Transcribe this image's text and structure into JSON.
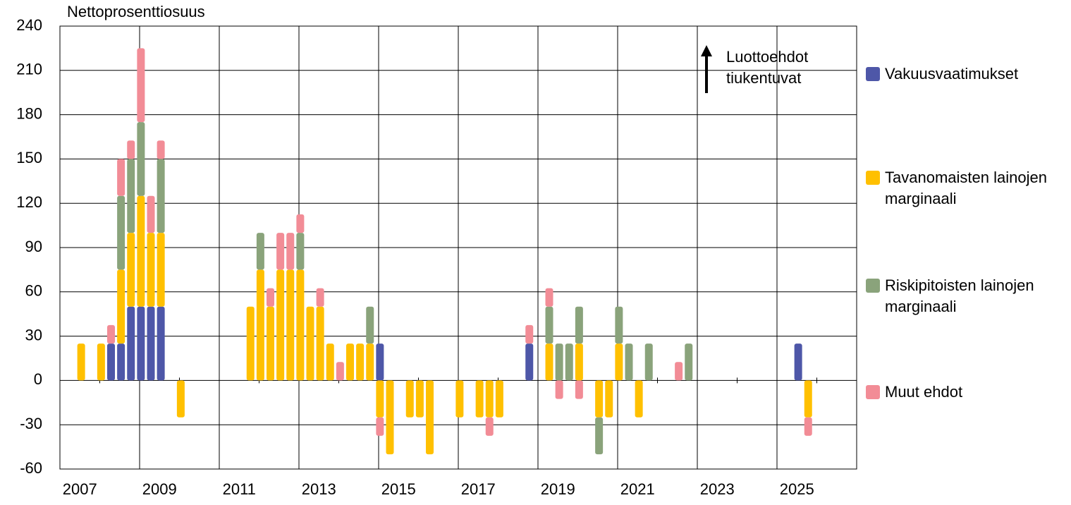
{
  "chart_data": {
    "type": "bar",
    "stacked": true,
    "y_axis_label": "Nettoprosenttiosuus",
    "annotation": "Luottoehdot tiukentuvat",
    "categories": [
      "2007",
      null,
      null,
      null,
      null,
      null,
      null,
      null,
      "2009",
      null,
      null,
      null,
      null,
      null,
      null,
      null,
      "2011",
      null,
      null,
      null,
      null,
      null,
      null,
      null,
      "2013",
      null,
      null,
      null,
      null,
      null,
      null,
      null,
      "2015",
      null,
      null,
      null,
      null,
      null,
      null,
      null,
      "2017",
      null,
      null,
      null,
      null,
      null,
      null,
      null,
      "2019",
      null,
      null,
      null,
      null,
      null,
      null,
      null,
      "2021",
      null,
      null,
      null,
      null,
      null,
      null,
      null,
      "2023",
      null,
      null,
      null,
      null,
      null,
      null,
      null,
      "2025",
      null,
      null,
      null
    ],
    "series": [
      {
        "name": "Vakuusvaatimukset",
        "color": "#4e57a8",
        "values": [
          null,
          null,
          null,
          null,
          25,
          25,
          50,
          50,
          50,
          50,
          null,
          null,
          null,
          null,
          null,
          null,
          null,
          null,
          null,
          null,
          null,
          null,
          null,
          null,
          null,
          null,
          null,
          null,
          null,
          null,
          null,
          25,
          null,
          null,
          null,
          null,
          null,
          null,
          null,
          null,
          null,
          null,
          null,
          null,
          null,
          null,
          25,
          null,
          null,
          null,
          null,
          null,
          null,
          null,
          null,
          null,
          null,
          null,
          null,
          null,
          null,
          null,
          null,
          null,
          null,
          null,
          null,
          null,
          null,
          null,
          null,
          null,
          null,
          25,
          null,
          null
        ]
      },
      {
        "name": "Tavanomaisten lainojen marginaali",
        "color": "#ffc000",
        "values": [
          null,
          25,
          null,
          25,
          null,
          50,
          50,
          75,
          50,
          50,
          null,
          -25,
          null,
          null,
          null,
          null,
          null,
          null,
          50,
          75,
          50,
          75,
          75,
          75,
          50,
          50,
          25,
          null,
          25,
          25,
          25,
          -25,
          -50,
          null,
          -25,
          -25,
          -50,
          null,
          null,
          -25,
          null,
          -25,
          -25,
          -25,
          null,
          null,
          null,
          null,
          25,
          null,
          null,
          25,
          null,
          -25,
          -25,
          25,
          null,
          -25,
          null,
          null,
          null,
          null,
          null,
          null,
          null,
          null,
          null,
          null,
          null,
          null,
          null,
          null,
          null,
          null,
          -25,
          null
        ]
      },
      {
        "name": "Riskipitoisten lainojen marginaali",
        "color": "#8aa37b",
        "values": [
          null,
          null,
          null,
          null,
          null,
          50,
          50,
          50,
          null,
          50,
          null,
          null,
          null,
          null,
          null,
          null,
          null,
          null,
          null,
          25,
          null,
          null,
          null,
          25,
          null,
          null,
          null,
          null,
          null,
          null,
          25,
          null,
          null,
          null,
          null,
          null,
          null,
          null,
          null,
          null,
          null,
          null,
          null,
          null,
          null,
          null,
          null,
          null,
          25,
          25,
          25,
          25,
          null,
          -25,
          null,
          25,
          25,
          null,
          25,
          null,
          null,
          null,
          25,
          null,
          null,
          null,
          null,
          null,
          null,
          null,
          null,
          null,
          null,
          null,
          null,
          null
        ]
      },
      {
        "name": "Muut ehdot",
        "color": "#f28c96",
        "values": [
          null,
          null,
          null,
          null,
          12.5,
          25,
          12.5,
          50,
          25,
          12.5,
          null,
          null,
          null,
          null,
          null,
          null,
          null,
          null,
          null,
          null,
          12.5,
          25,
          25,
          12.5,
          null,
          12.5,
          null,
          12.5,
          null,
          null,
          null,
          -12.5,
          null,
          null,
          null,
          null,
          null,
          null,
          null,
          null,
          null,
          null,
          -12.5,
          null,
          null,
          null,
          12.5,
          null,
          12.5,
          -12.5,
          null,
          -12.5,
          null,
          null,
          null,
          null,
          null,
          null,
          null,
          null,
          null,
          12.5,
          null,
          null,
          null,
          null,
          null,
          null,
          null,
          null,
          null,
          null,
          null,
          null,
          -12.5,
          null
        ]
      }
    ],
    "ylim": [
      -60,
      240
    ],
    "yticks": [
      -60,
      -30,
      0,
      30,
      60,
      90,
      120,
      150,
      180,
      210,
      240
    ],
    "grid": true
  }
}
